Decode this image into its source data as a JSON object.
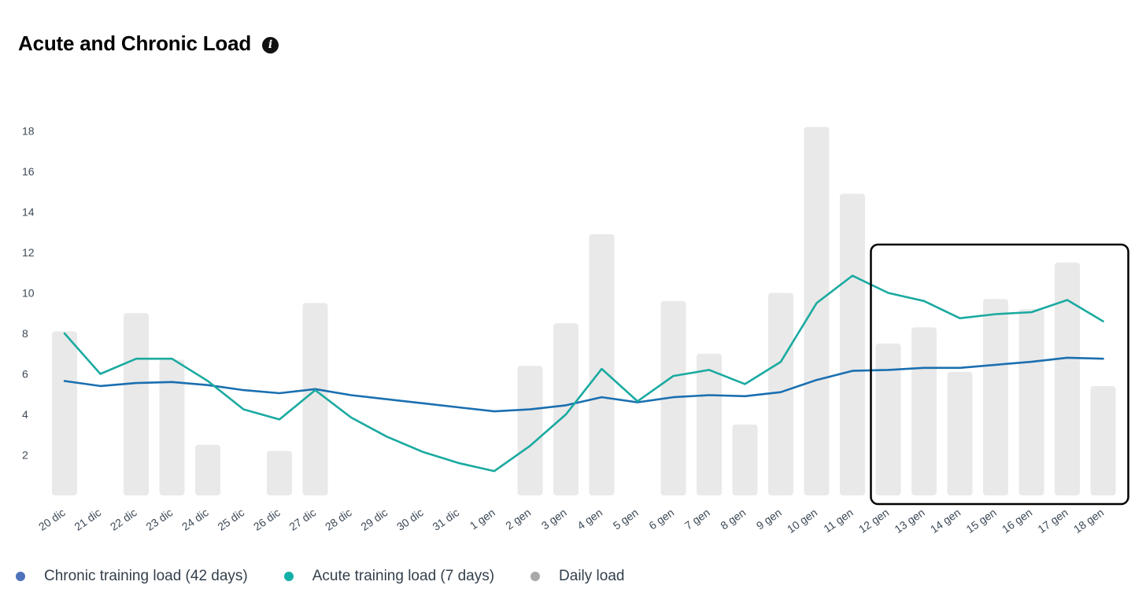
{
  "header": {
    "title": "Acute and Chronic Load",
    "info_icon": "i"
  },
  "colors": {
    "chronic": "#1a6fb0",
    "acute": "#1aaaa0",
    "daily": "#e9e9e9",
    "legend_chronic": "#4f72bd",
    "legend_acute": "#12b0a6",
    "legend_daily": "#a8a8a8"
  },
  "legend": [
    {
      "label": "Chronic training load (42 days)"
    },
    {
      "label": "Acute training load (7 days)"
    },
    {
      "label": "Daily load"
    }
  ],
  "chart_data": {
    "type": "bar+line",
    "categories": [
      "20 dic",
      "21 dic",
      "22 dic",
      "23 dic",
      "24 dic",
      "25 dic",
      "26 dic",
      "27 dic",
      "28 dic",
      "29 dic",
      "30 dic",
      "31 dic",
      "1 gen",
      "2 gen",
      "3 gen",
      "4 gen",
      "5 gen",
      "6 gen",
      "7 gen",
      "8 gen",
      "9 gen",
      "10 gen",
      "11 gen",
      "12 gen",
      "13 gen",
      "14 gen",
      "15 gen",
      "16 gen",
      "17 gen",
      "18 gen"
    ],
    "yticks": [
      2,
      4,
      6,
      8,
      10,
      12,
      14,
      16,
      18
    ],
    "ylim": [
      0,
      18.5
    ],
    "grid": false,
    "legend_position": "bottom-left",
    "highlight_range": [
      "12 gen",
      "18 gen"
    ],
    "series": [
      {
        "name": "Daily load",
        "type": "bar",
        "values": [
          8.1,
          0,
          9.0,
          6.7,
          2.5,
          0,
          2.2,
          9.5,
          0,
          0,
          0,
          0,
          0,
          6.4,
          8.5,
          12.9,
          0,
          9.6,
          7.0,
          3.5,
          10.0,
          18.2,
          14.9,
          7.5,
          8.3,
          6.1,
          9.7,
          9.2,
          11.5,
          5.4
        ]
      },
      {
        "name": "Chronic training load (42 days)",
        "type": "line",
        "values": [
          5.65,
          5.4,
          5.55,
          5.6,
          5.45,
          5.2,
          5.05,
          5.25,
          4.95,
          4.75,
          4.55,
          4.35,
          4.15,
          4.25,
          4.45,
          4.85,
          4.6,
          4.85,
          4.95,
          4.9,
          5.1,
          5.7,
          6.15,
          6.2,
          6.3,
          6.3,
          6.45,
          6.6,
          6.8,
          6.75
        ]
      },
      {
        "name": "Acute training load (7 days)",
        "type": "line",
        "values": [
          8.0,
          6.0,
          6.75,
          6.75,
          5.65,
          4.25,
          3.75,
          5.2,
          3.85,
          2.9,
          2.15,
          1.6,
          1.2,
          2.45,
          4.0,
          6.25,
          4.65,
          5.9,
          6.2,
          5.5,
          6.6,
          9.5,
          10.85,
          10.0,
          9.6,
          8.75,
          8.95,
          9.05,
          9.65,
          8.6
        ]
      }
    ]
  }
}
